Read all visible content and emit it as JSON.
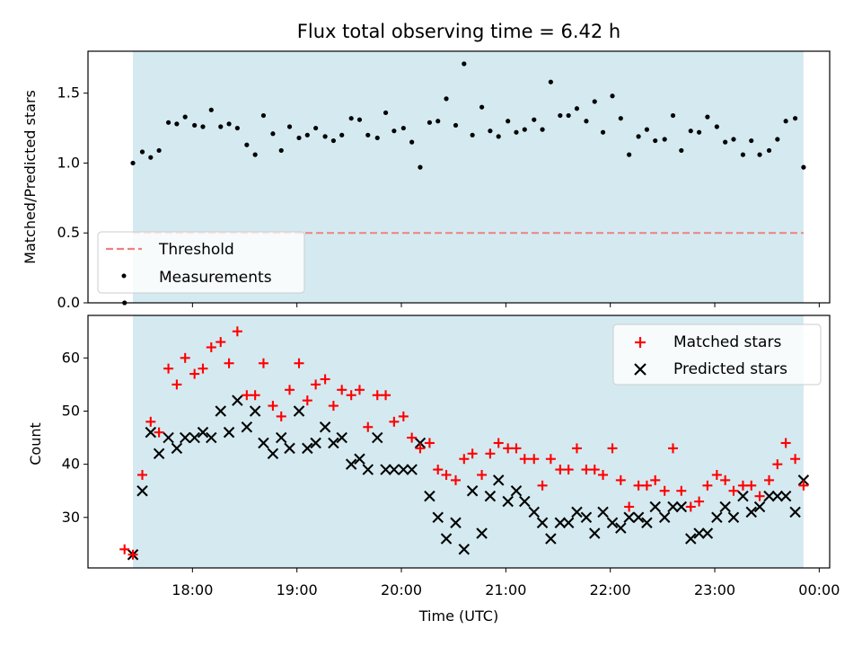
{
  "chart_data": [
    {
      "type": "scatter",
      "title": "Flux total observing time = 6.42 h",
      "xlabel": "",
      "ylabel": "Matched/Predicted stars",
      "xlim": [
        17.0,
        24.1
      ],
      "ylim": [
        0.0,
        1.8
      ],
      "yticks": [
        0.0,
        0.5,
        1.0,
        1.5
      ],
      "ytick_labels": [
        "0.0",
        "0.5",
        "1.0",
        "1.5"
      ],
      "observing_window": [
        17.43,
        23.85
      ],
      "threshold": 0.5,
      "legend_position": "lower-left",
      "legend": [
        "Threshold",
        "Measurements"
      ],
      "series": [
        {
          "name": "Measurements",
          "x": [
            17.35,
            17.43,
            17.52,
            17.6,
            17.68,
            17.77,
            17.85,
            17.93,
            18.02,
            18.1,
            18.18,
            18.27,
            18.35,
            18.43,
            18.52,
            18.6,
            18.68,
            18.77,
            18.85,
            18.93,
            19.02,
            19.1,
            19.18,
            19.27,
            19.35,
            19.43,
            19.52,
            19.6,
            19.68,
            19.77,
            19.85,
            19.93,
            20.02,
            20.1,
            20.18,
            20.27,
            20.35,
            20.43,
            20.52,
            20.6,
            20.68,
            20.77,
            20.85,
            20.93,
            21.02,
            21.1,
            21.18,
            21.27,
            21.35,
            21.43,
            21.52,
            21.6,
            21.68,
            21.77,
            21.85,
            21.93,
            22.02,
            22.1,
            22.18,
            22.27,
            22.35,
            22.43,
            22.52,
            22.6,
            22.68,
            22.77,
            22.85,
            22.93,
            23.02,
            23.1,
            23.18,
            23.27,
            23.35,
            23.43,
            23.52,
            23.6,
            23.68,
            23.77,
            23.85
          ],
          "y": [
            0.0,
            1.0,
            1.08,
            1.04,
            1.09,
            1.29,
            1.28,
            1.33,
            1.27,
            1.26,
            1.38,
            1.26,
            1.28,
            1.25,
            1.13,
            1.06,
            1.34,
            1.21,
            1.09,
            1.26,
            1.18,
            1.2,
            1.25,
            1.19,
            1.16,
            1.2,
            1.32,
            1.31,
            1.2,
            1.18,
            1.36,
            1.23,
            1.25,
            1.15,
            0.97,
            1.29,
            1.3,
            1.46,
            1.27,
            1.71,
            1.2,
            1.4,
            1.23,
            1.19,
            1.3,
            1.22,
            1.24,
            1.31,
            1.24,
            1.58,
            1.34,
            1.34,
            1.39,
            1.3,
            1.44,
            1.22,
            1.48,
            1.32,
            1.06,
            1.19,
            1.24,
            1.16,
            1.17,
            1.34,
            1.09,
            1.23,
            1.22,
            1.33,
            1.26,
            1.15,
            1.17,
            1.06,
            1.16,
            1.06,
            1.09,
            1.17,
            1.3,
            1.32,
            0.97
          ]
        }
      ]
    },
    {
      "type": "scatter",
      "title": "",
      "xlabel": "Time (UTC)",
      "ylabel": "Count",
      "xlim": [
        17.0,
        24.1
      ],
      "ylim": [
        20.5,
        68.0
      ],
      "yticks": [
        30,
        40,
        50,
        60
      ],
      "ytick_labels": [
        "30",
        "40",
        "50",
        "60"
      ],
      "xticks": [
        18,
        19,
        20,
        21,
        22,
        23,
        24
      ],
      "xtick_labels": [
        "18:00",
        "19:00",
        "20:00",
        "21:00",
        "22:00",
        "23:00",
        "00:00"
      ],
      "observing_window": [
        17.43,
        23.85
      ],
      "legend_position": "top-right",
      "legend": [
        "Matched stars",
        "Predicted stars"
      ],
      "series": [
        {
          "name": "Matched stars",
          "color": "#ff0000",
          "marker": "plus",
          "x": [
            17.35,
            17.43,
            17.52,
            17.6,
            17.68,
            17.77,
            17.85,
            17.93,
            18.02,
            18.1,
            18.18,
            18.27,
            18.35,
            18.43,
            18.52,
            18.6,
            18.68,
            18.77,
            18.85,
            18.93,
            19.02,
            19.1,
            19.18,
            19.27,
            19.35,
            19.43,
            19.52,
            19.6,
            19.68,
            19.77,
            19.85,
            19.93,
            20.02,
            20.1,
            20.18,
            20.27,
            20.35,
            20.43,
            20.52,
            20.6,
            20.68,
            20.77,
            20.85,
            20.93,
            21.02,
            21.1,
            21.18,
            21.27,
            21.35,
            21.43,
            21.52,
            21.6,
            21.68,
            21.77,
            21.85,
            21.93,
            22.02,
            22.1,
            22.18,
            22.27,
            22.35,
            22.43,
            22.52,
            22.6,
            22.68,
            22.77,
            22.85,
            22.93,
            23.02,
            23.1,
            23.18,
            23.27,
            23.35,
            23.43,
            23.52,
            23.6,
            23.68,
            23.77,
            23.85
          ],
          "y": [
            24,
            23,
            38,
            48,
            46,
            58,
            55,
            60,
            57,
            58,
            62,
            63,
            59,
            65,
            53,
            53,
            59,
            51,
            49,
            54,
            59,
            52,
            55,
            56,
            51,
            54,
            53,
            54,
            47,
            53,
            53,
            48,
            49,
            45,
            43,
            44,
            39,
            38,
            37,
            41,
            42,
            38,
            42,
            44,
            43,
            43,
            41,
            41,
            36,
            41,
            39,
            39,
            43,
            39,
            39,
            38,
            43,
            37,
            32,
            36,
            36,
            37,
            35,
            43,
            35,
            32,
            33,
            36,
            38,
            37,
            35,
            36,
            36,
            34,
            37,
            40,
            44,
            41,
            36
          ]
        },
        {
          "name": "Predicted stars",
          "color": "#000000",
          "marker": "x",
          "x": [
            17.43,
            17.52,
            17.6,
            17.68,
            17.77,
            17.85,
            17.93,
            18.02,
            18.1,
            18.18,
            18.27,
            18.35,
            18.43,
            18.52,
            18.6,
            18.68,
            18.77,
            18.85,
            18.93,
            19.02,
            19.1,
            19.18,
            19.27,
            19.35,
            19.43,
            19.52,
            19.6,
            19.68,
            19.77,
            19.85,
            19.93,
            20.02,
            20.1,
            20.18,
            20.27,
            20.35,
            20.43,
            20.52,
            20.6,
            20.68,
            20.77,
            20.85,
            20.93,
            21.02,
            21.1,
            21.18,
            21.27,
            21.35,
            21.43,
            21.52,
            21.6,
            21.68,
            21.77,
            21.85,
            21.93,
            22.02,
            22.1,
            22.18,
            22.27,
            22.35,
            22.43,
            22.52,
            22.6,
            22.68,
            22.77,
            22.85,
            22.93,
            23.02,
            23.1,
            23.18,
            23.27,
            23.35,
            23.43,
            23.52,
            23.6,
            23.68,
            23.77,
            23.85
          ],
          "y": [
            23,
            35,
            46,
            42,
            45,
            43,
            45,
            45,
            46,
            45,
            50,
            46,
            52,
            47,
            50,
            44,
            42,
            45,
            43,
            50,
            43,
            44,
            47,
            44,
            45,
            40,
            41,
            39,
            45,
            39,
            39,
            39,
            39,
            44,
            34,
            30,
            26,
            29,
            24,
            35,
            27,
            34,
            37,
            33,
            35,
            33,
            31,
            29,
            26,
            29,
            29,
            31,
            30,
            27,
            31,
            29,
            28,
            30,
            30,
            29,
            32,
            30,
            32,
            32,
            26,
            27,
            27,
            30,
            32,
            30,
            34,
            31,
            32,
            34,
            34,
            34,
            31,
            37
          ]
        }
      ]
    }
  ]
}
